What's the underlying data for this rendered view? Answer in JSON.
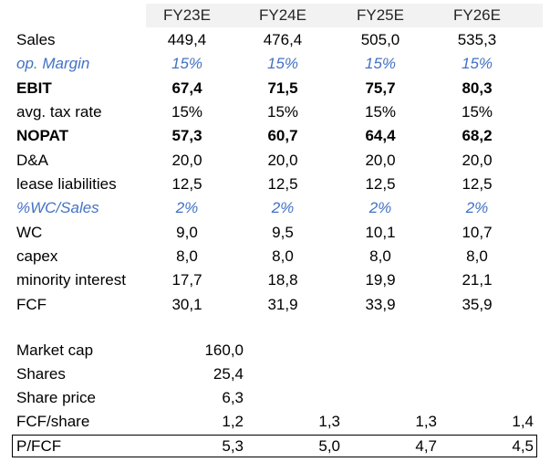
{
  "header": {
    "years": [
      "FY23E",
      "FY24E",
      "FY25E",
      "FY26E"
    ]
  },
  "table_rows": [
    {
      "label": "Sales",
      "values": [
        "449,4",
        "476,4",
        "505,0",
        "535,3"
      ],
      "style": "normal"
    },
    {
      "label": "op. Margin",
      "values": [
        "15%",
        "15%",
        "15%",
        "15%"
      ],
      "style": "italic-blue"
    },
    {
      "label": "EBIT",
      "values": [
        "67,4",
        "71,5",
        "75,7",
        "80,3"
      ],
      "style": "bold"
    },
    {
      "label": "avg. tax rate",
      "values": [
        "15%",
        "15%",
        "15%",
        "15%"
      ],
      "style": "normal"
    },
    {
      "label": "NOPAT",
      "values": [
        "57,3",
        "60,7",
        "64,4",
        "68,2"
      ],
      "style": "bold"
    },
    {
      "label": "D&A",
      "values": [
        "20,0",
        "20,0",
        "20,0",
        "20,0"
      ],
      "style": "normal"
    },
    {
      "label": "lease liabilities",
      "values": [
        "12,5",
        "12,5",
        "12,5",
        "12,5"
      ],
      "style": "normal"
    },
    {
      "label": "%WC/Sales",
      "values": [
        "2%",
        "2%",
        "2%",
        "2%"
      ],
      "style": "italic-blue"
    },
    {
      "label": "WC",
      "values": [
        "9,0",
        "9,5",
        "10,1",
        "10,7"
      ],
      "style": "normal"
    },
    {
      "label": "capex",
      "values": [
        "8,0",
        "8,0",
        "8,0",
        "8,0"
      ],
      "style": "normal"
    },
    {
      "label": "minority interest",
      "values": [
        "17,7",
        "18,8",
        "19,9",
        "21,1"
      ],
      "style": "normal"
    },
    {
      "label": "FCF",
      "values": [
        "30,1",
        "31,9",
        "33,9",
        "35,9"
      ],
      "style": "normal"
    }
  ],
  "valuation": {
    "market_cap": {
      "label": "Market cap",
      "value": "160,0"
    },
    "shares": {
      "label": "Shares",
      "value": "25,4"
    },
    "share_price": {
      "label": "Share price",
      "value": "6,3"
    },
    "fcf_share": {
      "label": "FCF/share",
      "values": [
        "1,2",
        "1,3",
        "1,3",
        "1,4"
      ]
    },
    "p_fcf": {
      "label": "P/FCF",
      "values": [
        "5,3",
        "5,0",
        "4,7",
        "4,5"
      ]
    }
  }
}
